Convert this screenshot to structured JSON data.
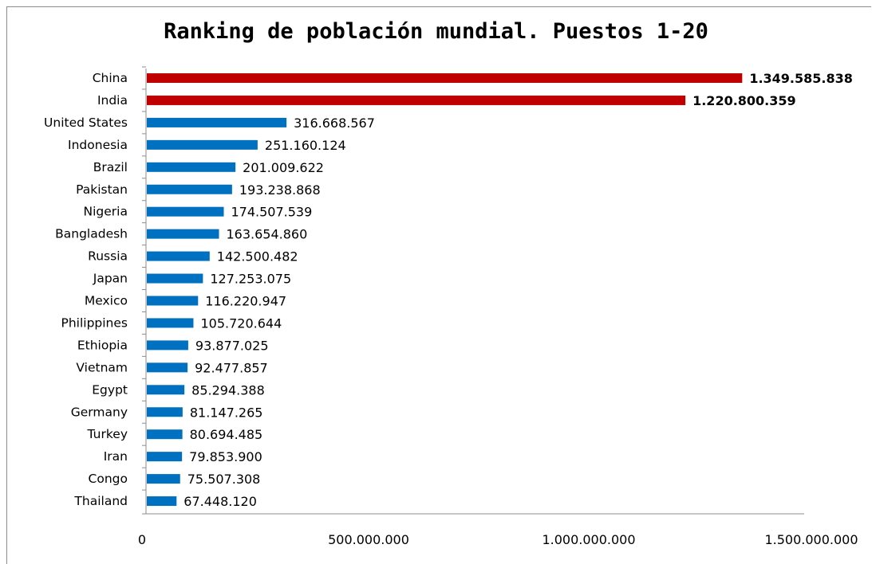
{
  "chart_data": {
    "type": "bar",
    "orientation": "horizontal",
    "title": "Ranking de población mundial. Puestos 1-20",
    "xlabel": "",
    "ylabel": "",
    "xlim": [
      0,
      1500000000
    ],
    "x_ticks": [
      0,
      500000000,
      1000000000,
      1500000000
    ],
    "x_tick_labels": [
      "0",
      "500.000.000",
      "1.000.000.000",
      "1.500.000.000"
    ],
    "grid": false,
    "legend": "none",
    "colors": {
      "highlight": "#c00000",
      "default": "#0070c0",
      "axis": "#8c8c8c"
    },
    "categories": [
      "China",
      "India",
      "United States",
      "Indonesia",
      "Brazil",
      "Pakistan",
      "Nigeria",
      "Bangladesh",
      "Russia",
      "Japan",
      "Mexico",
      "Philippines",
      "Ethiopia",
      "Vietnam",
      "Egypt",
      "Germany",
      "Turkey",
      "Iran",
      "Congo",
      "Thailand"
    ],
    "values": [
      1349585838,
      1220800359,
      316668567,
      251160124,
      201009622,
      193238868,
      174507539,
      163654860,
      142500482,
      127253075,
      116220947,
      105720644,
      93877025,
      92477857,
      85294388,
      81147265,
      80694485,
      79853900,
      75507308,
      67448120
    ],
    "value_labels": [
      "1.349.585.838",
      "1.220.800.359",
      "316.668.567",
      "251.160.124",
      "201.009.622",
      "193.238.868",
      "174.507.539",
      "163.654.860",
      "142.500.482",
      "127.253.075",
      "116.220.947",
      "105.720.644",
      "93.877.025",
      "92.477.857",
      "85.294.388",
      "81.147.265",
      "80.694.485",
      "79.853.900",
      "75.507.308",
      "67.448.120"
    ],
    "highlighted": [
      true,
      true,
      false,
      false,
      false,
      false,
      false,
      false,
      false,
      false,
      false,
      false,
      false,
      false,
      false,
      false,
      false,
      false,
      false,
      false
    ]
  }
}
